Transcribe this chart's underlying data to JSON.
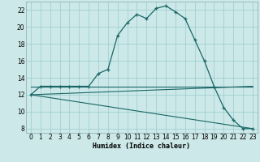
{
  "xlabel": "Humidex (Indice chaleur)",
  "bg_color": "#cce8e8",
  "grid_color": "#99cccc",
  "line_color": "#1a6666",
  "xlim": [
    -0.5,
    23.5
  ],
  "ylim": [
    7.5,
    23.0
  ],
  "yticks": [
    8,
    10,
    12,
    14,
    16,
    18,
    20,
    22
  ],
  "xticks": [
    0,
    1,
    2,
    3,
    4,
    5,
    6,
    7,
    8,
    9,
    10,
    11,
    12,
    13,
    14,
    15,
    16,
    17,
    18,
    19,
    20,
    21,
    22,
    23
  ],
  "humidex_x": [
    0,
    1,
    2,
    3,
    4,
    5,
    6,
    7,
    8,
    9,
    10,
    11,
    12,
    13,
    14,
    15,
    16,
    17,
    18,
    19,
    20,
    21,
    22,
    23
  ],
  "humidex_y": [
    12,
    13,
    13,
    13,
    13,
    13,
    13,
    14.5,
    15,
    19,
    20.5,
    21.5,
    21,
    22.2,
    22.5,
    21.8,
    21,
    18.5,
    16,
    13,
    10.5,
    9,
    8,
    8
  ],
  "line1_x": [
    0,
    23
  ],
  "line1_y": [
    12,
    13
  ],
  "line2_x": [
    0,
    23
  ],
  "line2_y": [
    12,
    8
  ],
  "line3_x": [
    0,
    23
  ],
  "line3_y": [
    13,
    13
  ],
  "xlabel_fontsize": 6,
  "tick_fontsize": 5.5
}
